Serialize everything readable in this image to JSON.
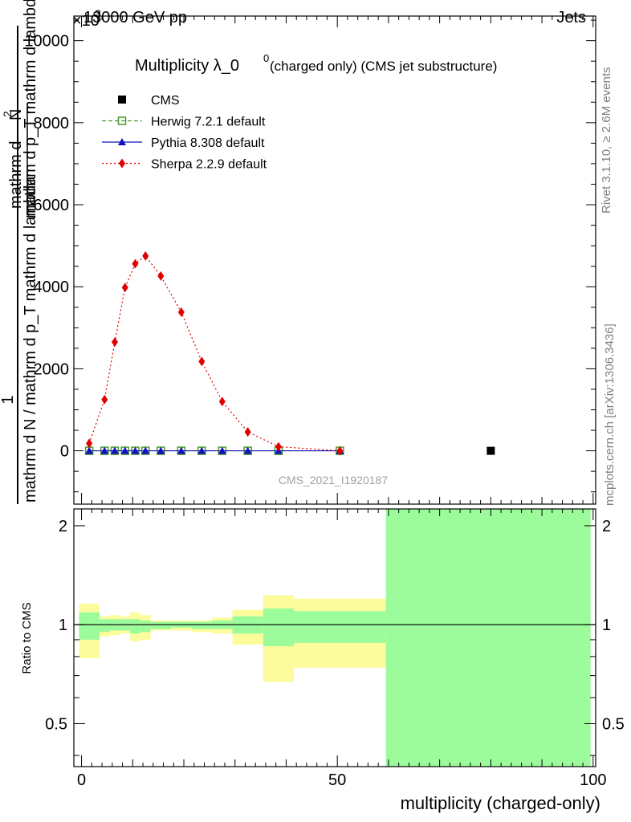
{
  "header": {
    "left": "13000 GeV pp",
    "right": "Jets",
    "exponent_prefix": "×10",
    "exponent_power": "3"
  },
  "side_labels": {
    "rivet": "Rivet 3.1.10, ≥ 2.6M events",
    "mcplots": "mcplots.cern.ch [arXiv:1306.3436]"
  },
  "main_title": {
    "main": "Multiplicity λ_0",
    "superscript": "0",
    "suffix": " (charged only) (CMS jet substructure)"
  },
  "analysis_tag": "CMS_2021_I1920187",
  "ylabel_top": {
    "numerator": "1",
    "denominator_line1": "mathrm d N / mathrm d p_T mathrm d lambda",
    "sub": "T",
    "frac_num": "mathrm d",
    "frac_num_sup": "2",
    "frac_num2": "N",
    "frac_den": "mathrm d p_T mathrm d lambda"
  },
  "legend": [
    {
      "label": "CMS",
      "color": "#000000",
      "marker": "filled-square",
      "line": "none"
    },
    {
      "label": "Herwig 7.2.1 default",
      "color": "#4a9a2a",
      "marker": "open-square",
      "line": "dashed"
    },
    {
      "label": "Pythia 8.308 default",
      "color": "#1010c0",
      "marker": "filled-triangle",
      "line": "solid"
    },
    {
      "label": "Sherpa 2.2.9 default",
      "color": "#e00000",
      "marker": "filled-diamond",
      "line": "dotted"
    }
  ],
  "chart_data": [
    {
      "type": "line",
      "panel": "main",
      "xlim": [
        -1.5,
        100.5
      ],
      "ylim": [
        -1300,
        10600
      ],
      "y_scale_factor": "×10^3",
      "y_ticks": [
        0,
        2000,
        4000,
        6000,
        8000,
        10000
      ],
      "y_tick_labels": [
        "0",
        "2000",
        "4000",
        "6000",
        "8000",
        "10000"
      ],
      "series": [
        {
          "name": "CMS",
          "x": [
            80
          ],
          "values": [
            0
          ]
        },
        {
          "name": "Herwig 7.2.1 default",
          "x": [
            1.5,
            4.5,
            6.5,
            8.5,
            10.5,
            12.5,
            15.5,
            19.5,
            23.5,
            27.5,
            32.5,
            38.5,
            50.5
          ],
          "values": [
            0,
            0,
            0,
            0,
            0,
            0,
            0,
            0,
            0,
            0,
            0,
            0,
            0
          ]
        },
        {
          "name": "Pythia 8.308 default",
          "x": [
            1.5,
            4.5,
            6.5,
            8.5,
            10.5,
            12.5,
            15.5,
            19.5,
            23.5,
            27.5,
            32.5,
            38.5,
            50.5
          ],
          "values": [
            0,
            0,
            0,
            0,
            0,
            0,
            0,
            0,
            0,
            0,
            0,
            0,
            0
          ]
        },
        {
          "name": "Sherpa 2.2.9 default",
          "x": [
            1.5,
            4.5,
            6.5,
            8.5,
            10.5,
            12.5,
            15.5,
            19.5,
            23.5,
            27.5,
            32.5,
            38.5,
            50.5
          ],
          "values": [
            180,
            1250,
            2650,
            3980,
            4560,
            4750,
            4260,
            3380,
            2180,
            1200,
            460,
            100,
            0
          ]
        }
      ]
    },
    {
      "type": "area",
      "panel": "ratio",
      "xlim": [
        -1.5,
        100.5
      ],
      "ylim": [
        0.37,
        2.25
      ],
      "ylabel": "Ratio to CMS",
      "xlabel": "multiplicity (charged-only)",
      "x_ticks": [
        0,
        50,
        100
      ],
      "x_tick_labels": [
        "0",
        "50",
        "100"
      ],
      "y_ticks": [
        0.5,
        1,
        2
      ],
      "y_tick_labels": [
        "0.5",
        "1",
        "2"
      ],
      "reference_line": 1,
      "bands": [
        {
          "x0": -0.5,
          "x1": 3.5,
          "stat_lo": 0.9,
          "stat_hi": 1.09,
          "tot_lo": 0.79,
          "tot_hi": 1.16
        },
        {
          "x0": 3.5,
          "x1": 5.5,
          "stat_lo": 0.95,
          "stat_hi": 1.04,
          "tot_lo": 0.92,
          "tot_hi": 1.06
        },
        {
          "x0": 5.5,
          "x1": 7.5,
          "stat_lo": 0.96,
          "stat_hi": 1.04,
          "tot_lo": 0.93,
          "tot_hi": 1.07
        },
        {
          "x0": 7.5,
          "x1": 9.5,
          "stat_lo": 0.96,
          "stat_hi": 1.04,
          "tot_lo": 0.94,
          "tot_hi": 1.06
        },
        {
          "x0": 9.5,
          "x1": 11.5,
          "stat_lo": 0.94,
          "stat_hi": 1.04,
          "tot_lo": 0.89,
          "tot_hi": 1.09
        },
        {
          "x0": 11.5,
          "x1": 13.5,
          "stat_lo": 0.95,
          "stat_hi": 1.03,
          "tot_lo": 0.9,
          "tot_hi": 1.07
        },
        {
          "x0": 13.5,
          "x1": 17.5,
          "stat_lo": 0.97,
          "stat_hi": 1.02,
          "tot_lo": 0.96,
          "tot_hi": 1.03
        },
        {
          "x0": 17.5,
          "x1": 21.5,
          "stat_lo": 0.98,
          "stat_hi": 1.02,
          "tot_lo": 0.96,
          "tot_hi": 1.03
        },
        {
          "x0": 21.5,
          "x1": 25.5,
          "stat_lo": 0.97,
          "stat_hi": 1.02,
          "tot_lo": 0.95,
          "tot_hi": 1.03
        },
        {
          "x0": 25.5,
          "x1": 29.5,
          "stat_lo": 0.97,
          "stat_hi": 1.03,
          "tot_lo": 0.94,
          "tot_hi": 1.05
        },
        {
          "x0": 29.5,
          "x1": 35.5,
          "stat_lo": 0.94,
          "stat_hi": 1.06,
          "tot_lo": 0.87,
          "tot_hi": 1.11
        },
        {
          "x0": 35.5,
          "x1": 41.5,
          "stat_lo": 0.86,
          "stat_hi": 1.12,
          "tot_lo": 0.67,
          "tot_hi": 1.23
        },
        {
          "x0": 41.5,
          "x1": 59.5,
          "stat_lo": 0.88,
          "stat_hi": 1.1,
          "tot_lo": 0.74,
          "tot_hi": 1.2
        },
        {
          "x0": 59.5,
          "x1": 99.5,
          "stat_lo": 0.37,
          "stat_hi": 2.25,
          "tot_lo": 0.37,
          "tot_hi": 2.25
        }
      ]
    }
  ],
  "colors": {
    "stat_band": "#9cfc9c",
    "tot_band": "#fcfc9c",
    "cms": "#000000",
    "herwig": "#4a9a2a",
    "pythia": "#1010c0",
    "sherpa": "#e00000",
    "tag_text": "#a0a0a0"
  }
}
